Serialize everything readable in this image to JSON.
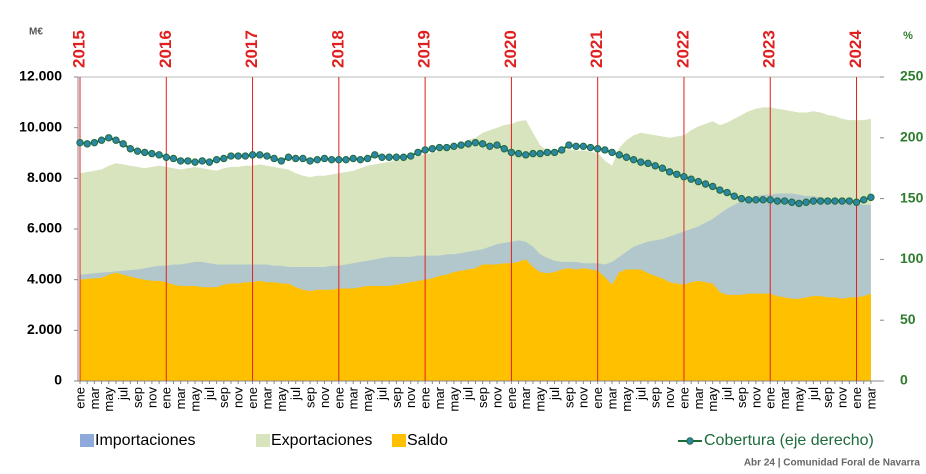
{
  "chart_data": {
    "type": "area-line",
    "y_axis_unit": "M€",
    "y2_axis_unit": "%",
    "footer": "Abr 24 | Comunidad Foral de Navarra",
    "years": [
      "2015",
      "2016",
      "2017",
      "2018",
      "2019",
      "2020",
      "2021",
      "2022",
      "2023",
      "2024"
    ],
    "categories": [
      "ene",
      null,
      "mar",
      null,
      "may",
      null,
      "jul",
      null,
      "sep",
      null,
      "nov",
      null,
      "ene",
      null,
      "mar",
      null,
      "may",
      null,
      "jul",
      null,
      "sep",
      null,
      "nov",
      null,
      "ene",
      null,
      "mar",
      null,
      "may",
      null,
      "jul",
      null,
      "sep",
      null,
      "nov",
      null,
      "ene",
      null,
      "mar",
      null,
      "may",
      null,
      "jul",
      null,
      "sep",
      null,
      "nov",
      null,
      "ene",
      null,
      "mar",
      null,
      "may",
      null,
      "jul",
      null,
      "sep",
      null,
      "nov",
      null,
      "ene",
      null,
      "mar",
      null,
      "may",
      null,
      "jul",
      null,
      "sep",
      null,
      "nov",
      null,
      "ene",
      null,
      "mar",
      null,
      "may",
      null,
      "jul",
      null,
      "sep",
      null,
      "nov",
      null,
      "ene",
      null,
      "mar",
      null,
      "may",
      null,
      "jul",
      null,
      "sep",
      null,
      "nov",
      null,
      "ene",
      null,
      "mar",
      null,
      "may",
      null,
      "jul",
      null,
      "sep",
      null,
      "nov",
      null,
      "ene",
      null,
      "mar"
    ],
    "series": [
      {
        "name": "Exportaciones",
        "kind": "area",
        "color": "#d7e4bd",
        "values": [
          8200,
          8250,
          8300,
          8350,
          8500,
          8600,
          8550,
          8500,
          8450,
          8400,
          8450,
          8500,
          8450,
          8400,
          8350,
          8400,
          8450,
          8400,
          8350,
          8300,
          8400,
          8450,
          8450,
          8500,
          8500,
          8550,
          8500,
          8450,
          8400,
          8350,
          8200,
          8100,
          8050,
          8100,
          8100,
          8150,
          8200,
          8250,
          8300,
          8400,
          8500,
          8550,
          8600,
          8650,
          8700,
          8750,
          8800,
          8900,
          8950,
          9000,
          9100,
          9200,
          9300,
          9400,
          9500,
          9600,
          9800,
          9900,
          10000,
          10100,
          10150,
          10250,
          10300,
          9800,
          9300,
          9100,
          9050,
          9100,
          9150,
          9100,
          9100,
          9050,
          9000,
          8700,
          8500,
          9200,
          9500,
          9700,
          9800,
          9750,
          9700,
          9650,
          9600,
          9650,
          9700,
          9900,
          10050,
          10150,
          10250,
          10100,
          10200,
          10350,
          10500,
          10650,
          10750,
          10800,
          10800,
          10750,
          10700,
          10650,
          10600,
          10600,
          10650,
          10600,
          10500,
          10450,
          10350,
          10300,
          10300,
          10300,
          10350
        ]
      },
      {
        "name": "Importaciones",
        "kind": "area",
        "color": "#8eaadb",
        "values": [
          4200,
          4220,
          4250,
          4280,
          4300,
          4330,
          4350,
          4380,
          4400,
          4450,
          4500,
          4550,
          4550,
          4600,
          4600,
          4650,
          4700,
          4700,
          4650,
          4600,
          4600,
          4600,
          4600,
          4600,
          4600,
          4600,
          4600,
          4550,
          4550,
          4500,
          4500,
          4500,
          4500,
          4500,
          4500,
          4550,
          4550,
          4600,
          4650,
          4700,
          4750,
          4800,
          4850,
          4900,
          4900,
          4900,
          4900,
          4950,
          4950,
          4950,
          4950,
          5000,
          5000,
          5050,
          5100,
          5150,
          5200,
          5300,
          5400,
          5450,
          5500,
          5550,
          5500,
          5300,
          5000,
          4850,
          4750,
          4700,
          4700,
          4700,
          4650,
          4650,
          4650,
          4600,
          4700,
          4900,
          5100,
          5300,
          5400,
          5500,
          5550,
          5600,
          5700,
          5800,
          5900,
          6000,
          6100,
          6250,
          6400,
          6600,
          6800,
          6950,
          7100,
          7200,
          7300,
          7350,
          7350,
          7400,
          7400,
          7400,
          7350,
          7300,
          7300,
          7250,
          7200,
          7150,
          7100,
          7000,
          7000,
          6950,
          6950
        ]
      },
      {
        "name": "Saldo",
        "kind": "area",
        "color": "#ffc000",
        "values": [
          4000,
          4030,
          4050,
          4070,
          4200,
          4270,
          4200,
          4120,
          4050,
          4000,
          3950,
          3950,
          3900,
          3800,
          3750,
          3750,
          3750,
          3700,
          3700,
          3700,
          3800,
          3850,
          3850,
          3900,
          3900,
          3950,
          3900,
          3900,
          3850,
          3850,
          3700,
          3600,
          3550,
          3600,
          3600,
          3600,
          3650,
          3650,
          3650,
          3700,
          3750,
          3750,
          3750,
          3750,
          3800,
          3850,
          3900,
          3950,
          4000,
          4050,
          4150,
          4200,
          4300,
          4350,
          4400,
          4450,
          4600,
          4600,
          4600,
          4650,
          4650,
          4700,
          4800,
          4500,
          4300,
          4250,
          4300,
          4400,
          4450,
          4400,
          4450,
          4400,
          4350,
          4100,
          3800,
          4300,
          4400,
          4400,
          4400,
          4250,
          4150,
          4050,
          3900,
          3850,
          3800,
          3900,
          3950,
          3900,
          3850,
          3500,
          3400,
          3400,
          3400,
          3450,
          3450,
          3450,
          3450,
          3350,
          3300,
          3250,
          3250,
          3300,
          3350,
          3350,
          3300,
          3300,
          3250,
          3300,
          3300,
          3350,
          3450
        ]
      },
      {
        "name": "Cobertura (eje derecho)",
        "kind": "line",
        "axis": "y2",
        "color": "#1e6b3c",
        "marker_color": "#2e86a6",
        "values": [
          196,
          195,
          196,
          198,
          200,
          198,
          195,
          191,
          189,
          188,
          187,
          186,
          184,
          183,
          181,
          181,
          180,
          181,
          180,
          182,
          183,
          185,
          185,
          185,
          186,
          186,
          185,
          183,
          181,
          184,
          183,
          183,
          181,
          182,
          183,
          182,
          182,
          182,
          183,
          182,
          183,
          186,
          184,
          184,
          184,
          184,
          185,
          188,
          190,
          191,
          192,
          192,
          193,
          194,
          195,
          196,
          195,
          193,
          194,
          191,
          188,
          187,
          186,
          187,
          187,
          188,
          188,
          190,
          194,
          193,
          193,
          192,
          191,
          190,
          188,
          186,
          184,
          182,
          180,
          179,
          177,
          175,
          172,
          170,
          168,
          166,
          164,
          162,
          160,
          157,
          155,
          152,
          150,
          149,
          149,
          149,
          149,
          148,
          148,
          147,
          146,
          147,
          148,
          148,
          148,
          148,
          148,
          148,
          147,
          149,
          151
        ]
      }
    ],
    "ylim": [
      0,
      12000
    ],
    "yticks": [
      0,
      {
        "value": 2000,
        "label": "2.000"
      },
      {
        "value": 4000,
        "label": "4.000"
      },
      {
        "value": 6000,
        "label": "6.000"
      },
      {
        "value": 8000,
        "label": "8.000"
      },
      {
        "value": 10000,
        "label": "10.000"
      },
      {
        "value": 12000,
        "label": "12.000"
      }
    ],
    "y2lim": [
      0,
      250
    ],
    "y2ticks": [
      0,
      50,
      100,
      150,
      200,
      250
    ],
    "grid": false
  }
}
